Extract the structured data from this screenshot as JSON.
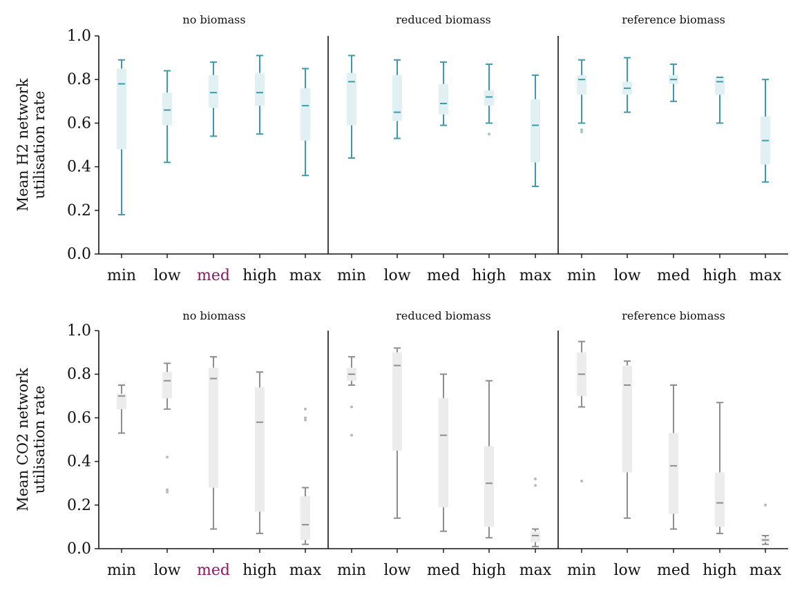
{
  "colors": {
    "h2_stroke": "#3a9aab",
    "h2_fill": "#e1f0f3",
    "h2_outlier": "#9ec7cf",
    "co2_stroke": "#8d8d8d",
    "co2_fill": "#ececec",
    "co2_outlier": "#b9b9b9",
    "highlight_tick": "#8b1a5e",
    "axis": "#111111"
  },
  "chart_data": [
    {
      "type": "box",
      "ylabel_lines": [
        "Mean H2 network",
        "utilisation rate"
      ],
      "ylim": [
        0,
        1
      ],
      "yticks": [
        "0.0",
        "0.2",
        "0.4",
        "0.6",
        "0.8",
        "1.0"
      ],
      "categories": [
        "min",
        "low",
        "med",
        "high",
        "max"
      ],
      "highlight_category": "med",
      "groups": [
        {
          "title": "no biomass",
          "boxes": [
            {
              "category": "min",
              "whislo": 0.18,
              "q1": 0.48,
              "med": 0.78,
              "q3": 0.85,
              "whishi": 0.89,
              "fliers": []
            },
            {
              "category": "low",
              "whislo": 0.42,
              "q1": 0.59,
              "med": 0.66,
              "q3": 0.74,
              "whishi": 0.84,
              "fliers": []
            },
            {
              "category": "med",
              "whislo": 0.54,
              "q1": 0.67,
              "med": 0.74,
              "q3": 0.82,
              "whishi": 0.88,
              "fliers": []
            },
            {
              "category": "high",
              "whislo": 0.55,
              "q1": 0.68,
              "med": 0.74,
              "q3": 0.83,
              "whishi": 0.91,
              "fliers": []
            },
            {
              "category": "max",
              "whislo": 0.36,
              "q1": 0.52,
              "med": 0.68,
              "q3": 0.76,
              "whishi": 0.85,
              "fliers": []
            }
          ]
        },
        {
          "title": "reduced biomass",
          "boxes": [
            {
              "category": "min",
              "whislo": 0.44,
              "q1": 0.59,
              "med": 0.79,
              "q3": 0.83,
              "whishi": 0.91,
              "fliers": []
            },
            {
              "category": "low",
              "whislo": 0.53,
              "q1": 0.61,
              "med": 0.65,
              "q3": 0.82,
              "whishi": 0.89,
              "fliers": []
            },
            {
              "category": "med",
              "whislo": 0.59,
              "q1": 0.64,
              "med": 0.69,
              "q3": 0.78,
              "whishi": 0.88,
              "fliers": []
            },
            {
              "category": "high",
              "whislo": 0.6,
              "q1": 0.68,
              "med": 0.72,
              "q3": 0.75,
              "whishi": 0.87,
              "fliers": [
                0.55
              ]
            },
            {
              "category": "max",
              "whislo": 0.31,
              "q1": 0.42,
              "med": 0.59,
              "q3": 0.71,
              "whishi": 0.82,
              "fliers": []
            }
          ]
        },
        {
          "title": "reference biomass",
          "boxes": [
            {
              "category": "min",
              "whislo": 0.6,
              "q1": 0.73,
              "med": 0.8,
              "q3": 0.82,
              "whishi": 0.89,
              "fliers": [
                0.56,
                0.57
              ]
            },
            {
              "category": "low",
              "whislo": 0.65,
              "q1": 0.73,
              "med": 0.76,
              "q3": 0.79,
              "whishi": 0.9,
              "fliers": []
            },
            {
              "category": "med",
              "whislo": 0.7,
              "q1": 0.78,
              "med": 0.8,
              "q3": 0.82,
              "whishi": 0.87,
              "fliers": []
            },
            {
              "category": "high",
              "whislo": 0.6,
              "q1": 0.73,
              "med": 0.79,
              "q3": 0.81,
              "whishi": 0.81,
              "fliers": []
            },
            {
              "category": "max",
              "whislo": 0.33,
              "q1": 0.41,
              "med": 0.52,
              "q3": 0.63,
              "whishi": 0.8,
              "fliers": []
            }
          ]
        }
      ]
    },
    {
      "type": "box",
      "ylabel_lines": [
        "Mean CO2 network",
        "utilisation rate"
      ],
      "ylim": [
        0,
        1
      ],
      "yticks": [
        "0.0",
        "0.2",
        "0.4",
        "0.6",
        "0.8",
        "1.0"
      ],
      "categories": [
        "min",
        "low",
        "med",
        "high",
        "max"
      ],
      "highlight_category": "med",
      "groups": [
        {
          "title": "no biomass",
          "boxes": [
            {
              "category": "min",
              "whislo": 0.53,
              "q1": 0.64,
              "med": 0.7,
              "q3": 0.71,
              "whishi": 0.75,
              "fliers": []
            },
            {
              "category": "low",
              "whislo": 0.64,
              "q1": 0.69,
              "med": 0.77,
              "q3": 0.81,
              "whishi": 0.85,
              "fliers": [
                0.26,
                0.27,
                0.42
              ]
            },
            {
              "category": "med",
              "whislo": 0.09,
              "q1": 0.28,
              "med": 0.78,
              "q3": 0.83,
              "whishi": 0.88,
              "fliers": []
            },
            {
              "category": "high",
              "whislo": 0.07,
              "q1": 0.17,
              "med": 0.58,
              "q3": 0.74,
              "whishi": 0.81,
              "fliers": []
            },
            {
              "category": "max",
              "whislo": 0.02,
              "q1": 0.04,
              "med": 0.11,
              "q3": 0.24,
              "whishi": 0.28,
              "fliers": [
                0.59,
                0.6,
                0.64
              ]
            }
          ]
        },
        {
          "title": "reduced biomass",
          "boxes": [
            {
              "category": "min",
              "whislo": 0.75,
              "q1": 0.77,
              "med": 0.8,
              "q3": 0.83,
              "whishi": 0.88,
              "fliers": [
                0.52,
                0.65
              ]
            },
            {
              "category": "low",
              "whislo": 0.14,
              "q1": 0.45,
              "med": 0.84,
              "q3": 0.9,
              "whishi": 0.92,
              "fliers": []
            },
            {
              "category": "med",
              "whislo": 0.08,
              "q1": 0.19,
              "med": 0.52,
              "q3": 0.69,
              "whishi": 0.8,
              "fliers": []
            },
            {
              "category": "high",
              "whislo": 0.05,
              "q1": 0.1,
              "med": 0.3,
              "q3": 0.47,
              "whishi": 0.77,
              "fliers": []
            },
            {
              "category": "max",
              "whislo": 0.01,
              "q1": 0.03,
              "med": 0.06,
              "q3": 0.08,
              "whishi": 0.09,
              "fliers": [
                0.29,
                0.32
              ]
            }
          ]
        },
        {
          "title": "reference biomass",
          "boxes": [
            {
              "category": "min",
              "whislo": 0.65,
              "q1": 0.7,
              "med": 0.8,
              "q3": 0.9,
              "whishi": 0.95,
              "fliers": [
                0.31
              ]
            },
            {
              "category": "low",
              "whislo": 0.14,
              "q1": 0.35,
              "med": 0.75,
              "q3": 0.84,
              "whishi": 0.86,
              "fliers": []
            },
            {
              "category": "med",
              "whislo": 0.09,
              "q1": 0.16,
              "med": 0.38,
              "q3": 0.53,
              "whishi": 0.75,
              "fliers": []
            },
            {
              "category": "high",
              "whislo": 0.07,
              "q1": 0.1,
              "med": 0.21,
              "q3": 0.35,
              "whishi": 0.67,
              "fliers": []
            },
            {
              "category": "max",
              "whislo": 0.02,
              "q1": 0.03,
              "med": 0.04,
              "q3": 0.05,
              "whishi": 0.06,
              "fliers": [
                0.2
              ]
            }
          ]
        }
      ]
    }
  ]
}
